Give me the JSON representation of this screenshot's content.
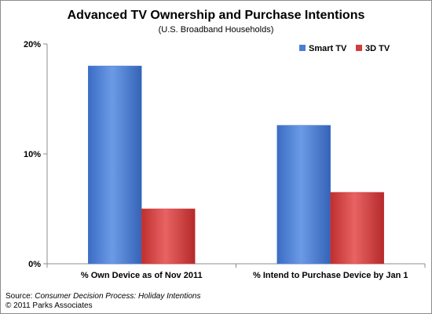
{
  "chart_data": {
    "type": "bar",
    "title": "Advanced TV Ownership and Purchase Intentions",
    "subtitle": "(U.S. Broadband Households)",
    "categories": [
      "% Own Device as of Nov 2011",
      "% Intend to Purchase Device by Jan 1"
    ],
    "series": [
      {
        "name": "Smart TV",
        "values": [
          18,
          12.6
        ],
        "color": "#4a7ed6"
      },
      {
        "name": "3D TV",
        "values": [
          5,
          6.5
        ],
        "color": "#d23c3c"
      }
    ],
    "yticks": [
      "0%",
      "10%",
      "20%"
    ],
    "ylim": [
      0,
      20
    ],
    "legend_position": "top-right",
    "grid": false
  },
  "footer": {
    "source_prefix": "Source: ",
    "source_title": "Consumer Decision Process: Holiday Intentions",
    "copyright": "© 2011 Parks Associates"
  }
}
